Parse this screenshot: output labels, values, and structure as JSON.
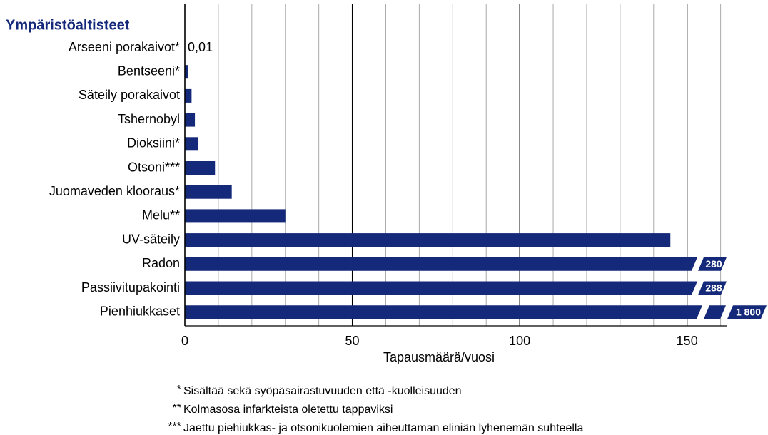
{
  "chart_data": {
    "type": "bar",
    "orientation": "horizontal",
    "title": "Ympäristöaltisteet",
    "categories": [
      "Arseeni porakaivot*",
      "Bentseeni*",
      "Säteily porakaivot",
      "Tshernobyl",
      "Dioksiini*",
      "Otsoni***",
      "Juomaveden klooraus*",
      "Melu**",
      "UV-säteily",
      "Radon",
      "Passiivitupakointi",
      "Pienhiukkaset"
    ],
    "values": [
      0.01,
      1,
      2,
      3,
      4,
      9,
      14,
      30,
      145,
      280,
      288,
      1800
    ],
    "value_labels": [
      "0,01",
      null,
      null,
      null,
      null,
      null,
      null,
      null,
      null,
      "280",
      "288",
      "1 800"
    ],
    "color": "#14297a",
    "xlim": [
      0,
      162
    ],
    "xticks": [
      0,
      50,
      100,
      150
    ],
    "minor_xticks": [
      10,
      20,
      30,
      40,
      60,
      70,
      80,
      90,
      110,
      120,
      130,
      140,
      160
    ],
    "grid": true,
    "xlabel": "Tapausmäärä/vuosi",
    "footnotes": [
      {
        "marker": "*",
        "text": "Sisältää sekä syöpäsairastuvuuden että -kuolleisuuden"
      },
      {
        "marker": "**",
        "text": "Kolmasosa infarkteista oletettu tappaviksi"
      },
      {
        "marker": "***",
        "text": "Jaettu piehiukkas- ja otsonikuolemien aiheuttaman eliniän lyhenemän suhteella"
      }
    ]
  }
}
